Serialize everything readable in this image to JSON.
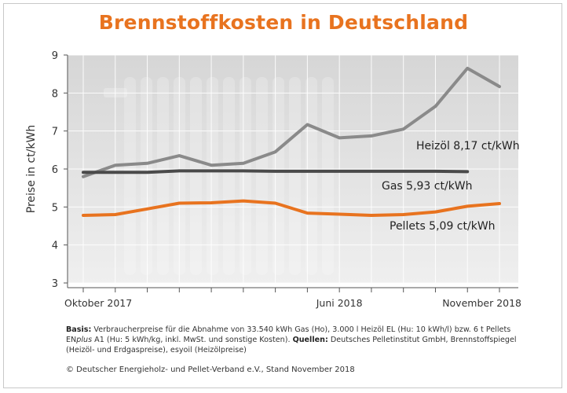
{
  "chart_data": {
    "type": "line",
    "title": "Brennstoffkosten in Deutschland",
    "ylabel": "Preise in ct/kWh",
    "xlabel": "",
    "ylim": [
      3,
      9
    ],
    "yticks": [
      3,
      4,
      5,
      6,
      7,
      8,
      9
    ],
    "x_tick_labels": [
      "Oktober 2017",
      "Juni 2018",
      "November 2018"
    ],
    "months": [
      "2017-10",
      "2017-11",
      "2017-12",
      "2018-01",
      "2018-02",
      "2018-03",
      "2018-04",
      "2018-05",
      "2018-06",
      "2018-07",
      "2018-08",
      "2018-09",
      "2018-10",
      "2018-11"
    ],
    "grid": true,
    "series": [
      {
        "name": "Heizöl",
        "label": "Heizöl 8,17 ct/kWh",
        "color": "#8a8a8a",
        "values": [
          5.8,
          6.1,
          6.15,
          6.35,
          6.1,
          6.15,
          6.45,
          7.17,
          6.82,
          6.87,
          7.05,
          7.65,
          8.65,
          8.17
        ]
      },
      {
        "name": "Gas",
        "label": "Gas 5,93 ct/kWh",
        "color": "#4a4a4a",
        "values": [
          5.91,
          5.91,
          5.91,
          5.95,
          5.95,
          5.95,
          5.94,
          5.94,
          5.94,
          5.94,
          5.94,
          5.94,
          5.93,
          null
        ]
      },
      {
        "name": "Pellets",
        "label": "Pellets 5,09 ct/kWh",
        "color": "#e8731f",
        "values": [
          4.78,
          4.8,
          4.95,
          5.1,
          5.11,
          5.16,
          5.1,
          4.84,
          4.81,
          4.78,
          4.8,
          4.87,
          5.02,
          5.09
        ]
      }
    ]
  },
  "notes": {
    "basis_label": "Basis:",
    "basis_text": " Verbraucherpreise für die Abnahme von 33.540 kWh Gas (Ho), 3.000 l Heizöl EL (Hu: 10 kWh/l) bzw. 6 t Pellets EN",
    "enplus_italic": "plus",
    "basis_text_2": " A1 (Hu: 5 kWh/kg, inkl. MwSt. und sonstige Kosten). ",
    "sources_label": "Quellen:",
    "sources_text": " Deutsches Pelletinstitut GmbH, Brennstoffspiegel (Heizöl- und Erdgaspreise), esyoil (Heizölpreise)"
  },
  "copyright": "© Deutscher Energieholz- und Pellet-Verband e.V., Stand November 2018"
}
